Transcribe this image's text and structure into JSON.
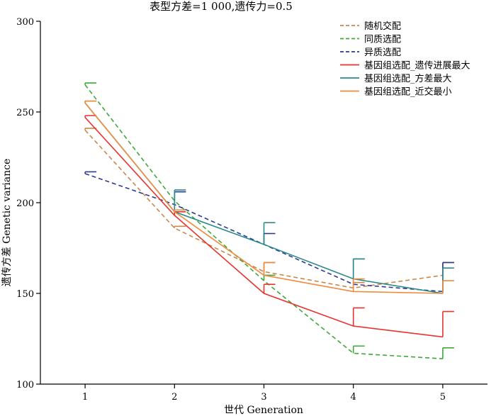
{
  "chart_data": {
    "type": "line",
    "title": "表型方差=1 000,遗传力=0.5",
    "xlabel": "世代  Generation",
    "ylabel": "遗传方差  Genetic variance",
    "x": [
      1,
      2,
      3,
      4,
      5
    ],
    "x_tick_labels": [
      "1",
      "2",
      "3",
      "4",
      "5"
    ],
    "ylim": [
      100,
      300
    ],
    "y_ticks": [
      100,
      150,
      200,
      250,
      300
    ],
    "y_tick_labels": [
      "100",
      "150",
      "200",
      "250",
      "300"
    ],
    "grid": false,
    "legend_position": "top-right",
    "series": [
      {
        "name": "随机交配",
        "color": "#c8884e",
        "dash": "dashed",
        "values": [
          240,
          186,
          162,
          153,
          160
        ],
        "error_up": [
          1,
          1,
          5,
          3,
          7
        ]
      },
      {
        "name": "同质选配",
        "color": "#3fa83a",
        "dash": "dashed",
        "values": [
          265,
          201,
          157,
          117,
          114
        ],
        "error_up": [
          1,
          5,
          3,
          4,
          6
        ]
      },
      {
        "name": "异质选配",
        "color": "#2e3b8f",
        "dash": "dashed",
        "values": [
          216,
          199,
          177,
          155,
          151
        ],
        "error_up": [
          1,
          7,
          6,
          14,
          16
        ]
      },
      {
        "name": "基因组选配_遗传进展最大",
        "color": "#e8332f",
        "dash": "solid",
        "values": [
          247,
          193,
          150,
          132,
          126
        ],
        "error_up": [
          1,
          2,
          5,
          10,
          14
        ]
      },
      {
        "name": "基因组选配_方差最大",
        "color": "#2b8a8a",
        "dash": "solid",
        "values": [
          255,
          195,
          177,
          158,
          150
        ],
        "error_up": [
          1,
          12,
          12,
          11,
          14
        ]
      },
      {
        "name": "基因组选配_近交最小",
        "color": "#f08a3c",
        "dash": "solid",
        "values": [
          255,
          195,
          160,
          151,
          150
        ],
        "error_up": [
          1,
          1,
          7,
          7,
          7
        ]
      }
    ]
  }
}
